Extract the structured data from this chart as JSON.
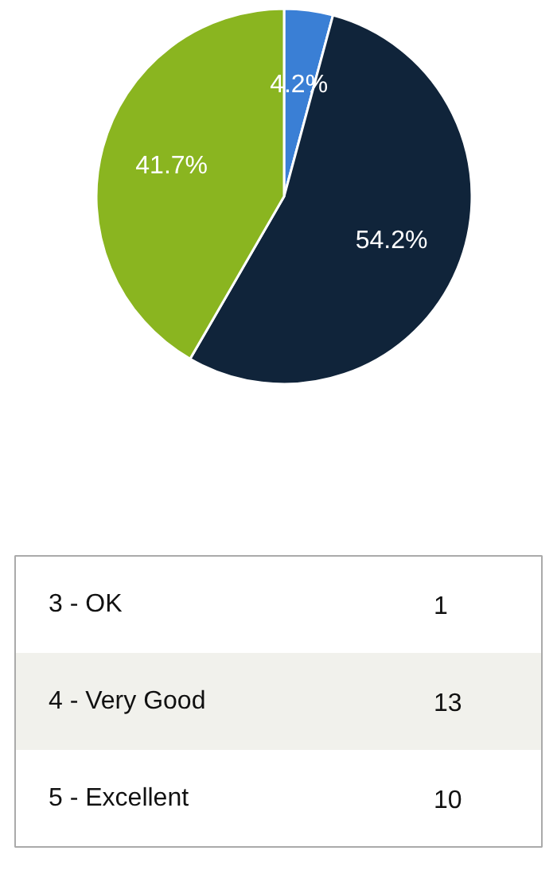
{
  "chart_data": [
    {
      "type": "pie",
      "categories": [
        null,
        null,
        null
      ],
      "values": [
        4.2,
        54.2,
        41.7
      ],
      "colors": [
        "#3a7fd5",
        "#10243a",
        "#8ab520"
      ],
      "value_labels": [
        "4.2%",
        "54.2%",
        "41.7%"
      ]
    },
    {
      "type": "other",
      "categories": [
        "3 - OK",
        "4 - Very Good",
        "5 - Excellent"
      ],
      "values": [
        1,
        13,
        10
      ],
      "data_labels": true
    }
  ]
}
